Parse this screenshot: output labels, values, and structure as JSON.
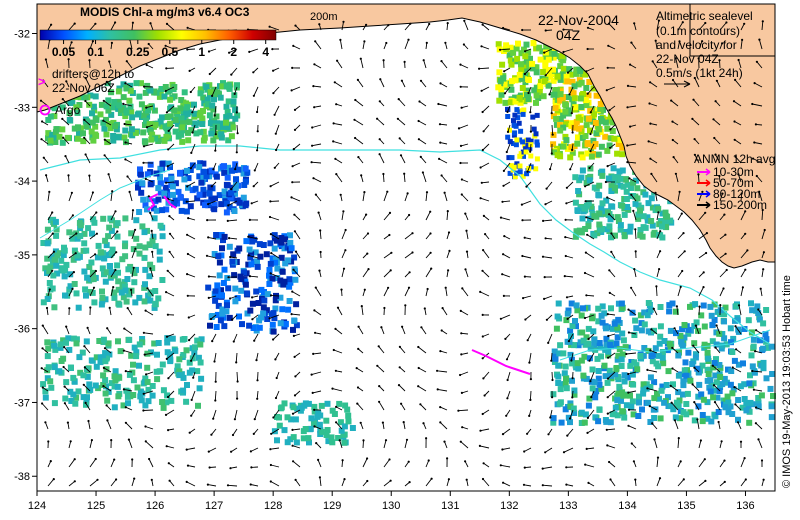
{
  "header": {
    "product_title": "MODIS Chl-a mg/m3 v6.4 OC3",
    "date": "22-Nov-2004",
    "time": "04Z",
    "isobath_label": "200m"
  },
  "colorbar": {
    "tick_labels": [
      "0.05",
      "0.1",
      "0.25",
      "0.5",
      "1",
      "2",
      "4"
    ],
    "tick_values": [
      0.05,
      0.1,
      0.25,
      0.5,
      1,
      2,
      4
    ],
    "range": [
      0.03,
      5
    ],
    "scale": "log",
    "colors": [
      "#0000aa",
      "#0050ff",
      "#00b0ff",
      "#30c0a0",
      "#40c060",
      "#a0e000",
      "#ffff00",
      "#ffc000",
      "#ff6000",
      "#d00000",
      "#800000"
    ]
  },
  "legend": {
    "drifters_marker": ">",
    "drifters_label": "drifters@12h to",
    "drifters_label_2": "22-Nov 06Z",
    "argo_label": "Argo",
    "altimetry_lines": [
      "Altimetric sealevel",
      "(0.1m contours)",
      "and velocity for",
      "22-Nov 04Z",
      "0.5m/s (1kt 24h)"
    ],
    "anmn_title": "ANMN 12h avg",
    "anmn_entries": [
      {
        "label": "10-30m",
        "color": "#ff00ff"
      },
      {
        "label": "50-70m",
        "color": "#ff0000"
      },
      {
        "label": "80-120m",
        "color": "#0000ff"
      },
      {
        "label": "150-200m",
        "color": "#000000"
      }
    ]
  },
  "axes": {
    "x_ticks": [
      124,
      125,
      126,
      127,
      128,
      129,
      130,
      131,
      132,
      133,
      134,
      135,
      136
    ],
    "x_range": [
      124,
      136.5
    ],
    "y_ticks": [
      -32,
      -33,
      -34,
      -35,
      -36,
      -37,
      -38
    ],
    "y_range": [
      -38.2,
      -31.6
    ]
  },
  "credit": "© IMOS 19-May-2013 19:03:53 Hobart time",
  "colors": {
    "land": "#f8c8a0",
    "ocean": "#ffffff",
    "contour": "#40e0e0",
    "drifter": "#ff00ff"
  }
}
